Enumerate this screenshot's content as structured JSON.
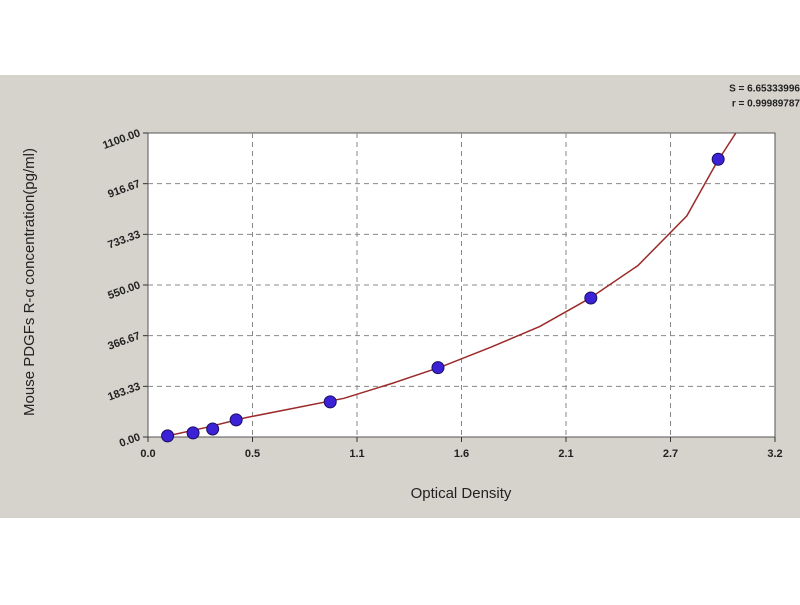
{
  "chart_data": {
    "type": "scatter",
    "annotations": [
      "S = 6.65333996",
      "r = 0.99989787"
    ],
    "x_label": "Optical Density",
    "y_label": "Mouse PDGFs R-α concentration(pg/ml)",
    "xlim": [
      0,
      3.2
    ],
    "ylim": [
      0,
      1100
    ],
    "xticks": [
      {
        "value": 0,
        "label": "0.0"
      },
      {
        "value": 0.5333,
        "label": "0.5"
      },
      {
        "value": 1.0667,
        "label": "1.1"
      },
      1.6,
      {
        "value": 2.1333,
        "label": "2.1"
      },
      {
        "value": 2.6667,
        "label": "2.7"
      },
      3.2
    ],
    "yticks": [
      {
        "value": 0,
        "label": "0.00"
      },
      183.33,
      366.67,
      {
        "value": 550,
        "label": "550.00"
      },
      733.33,
      916.67,
      {
        "value": 1100,
        "label": "1100.00"
      }
    ],
    "grid": true,
    "series": [
      {
        "type": "scatter",
        "color": "#3b22d6",
        "x": [
          0.1,
          0.23,
          0.33,
          0.45,
          0.93,
          1.48,
          2.26,
          2.91
        ],
        "values": [
          4,
          15,
          29,
          62,
          127,
          251,
          503,
          1005
        ]
      },
      {
        "type": "line",
        "color": "#9b2a2a",
        "x": [
          0.1,
          0.3,
          0.5,
          0.75,
          1.0,
          1.25,
          1.5,
          1.75,
          2.0,
          2.25,
          2.5,
          2.75,
          2.9,
          3.0
        ],
        "values": [
          4,
          35,
          70,
          105,
          140,
          195,
          255,
          325,
          400,
          500,
          620,
          800,
          990,
          1100
        ]
      }
    ]
  }
}
